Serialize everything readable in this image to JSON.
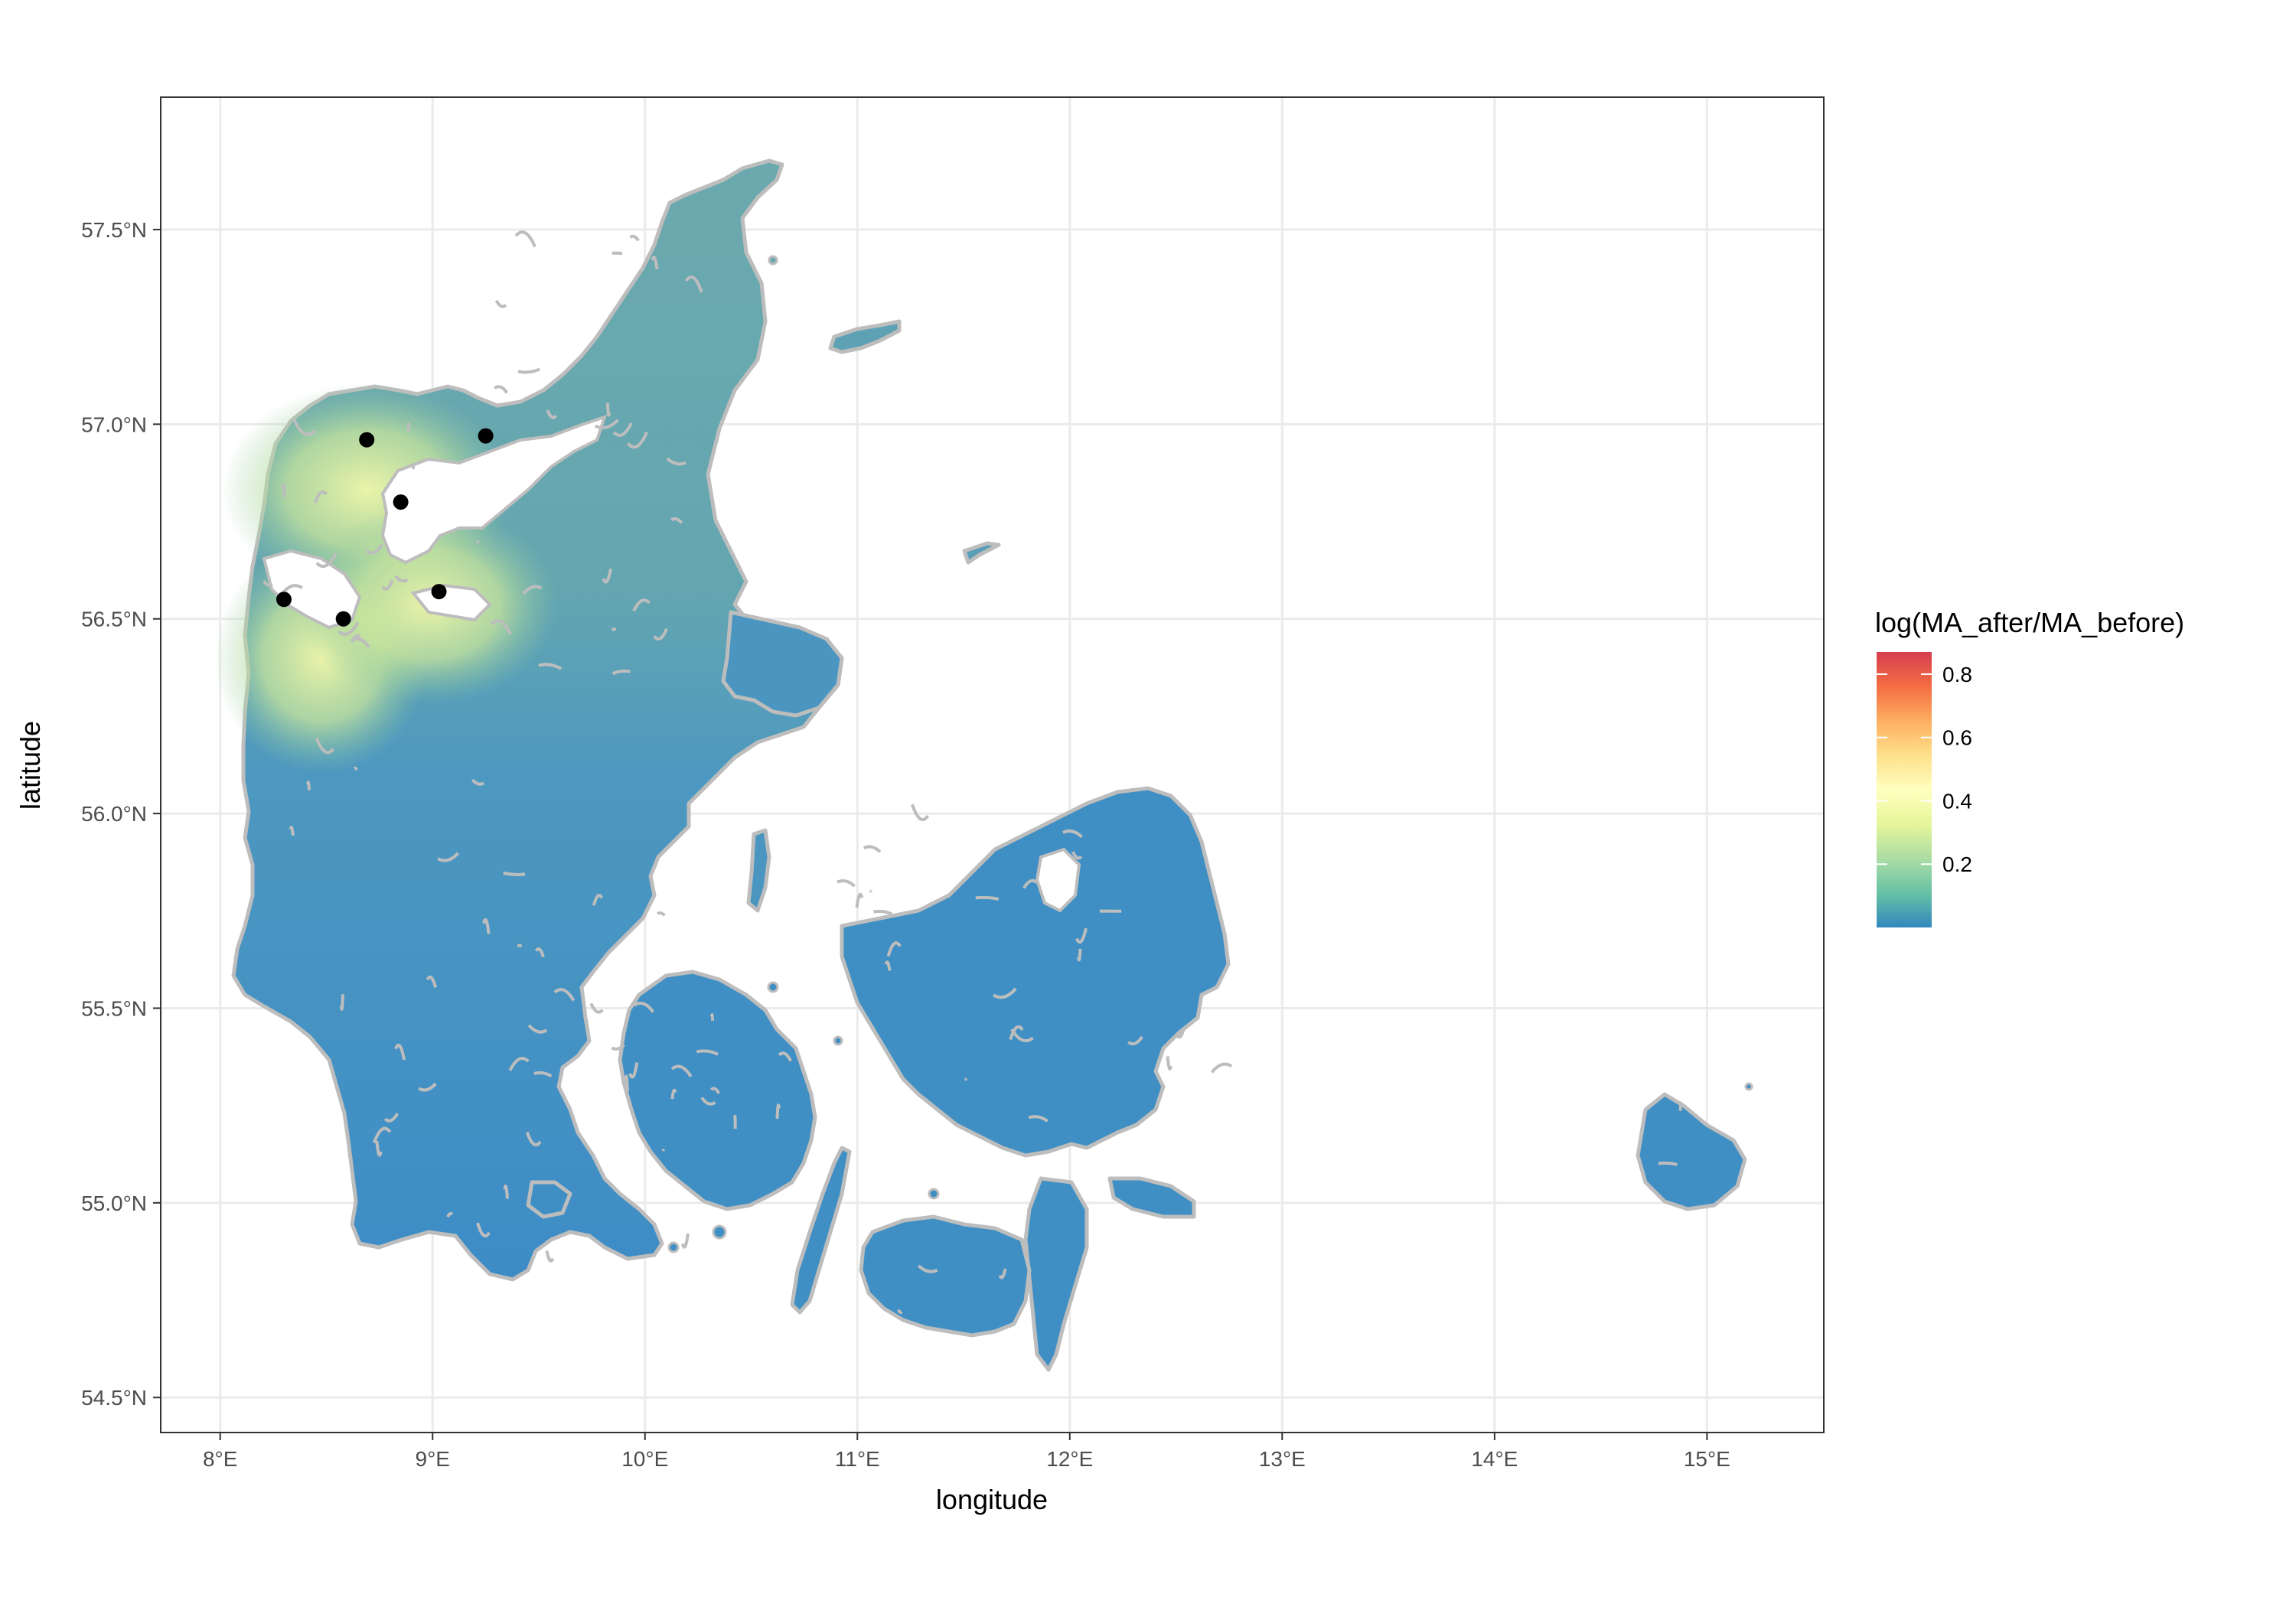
{
  "chart_data": {
    "type": "choropleth-map",
    "xlabel": "longitude",
    "ylabel": "latitude",
    "x_ticks": [
      "8°E",
      "9°E",
      "10°E",
      "11°E",
      "12°E",
      "13°E",
      "14°E",
      "15°E"
    ],
    "x_tick_values": [
      8,
      9,
      10,
      11,
      12,
      13,
      14,
      15
    ],
    "y_ticks": [
      "54.5°N",
      "55.0°N",
      "55.5°N",
      "56.0°N",
      "56.5°N",
      "57.0°N",
      "57.5°N"
    ],
    "y_tick_values": [
      54.5,
      55.0,
      55.5,
      56.0,
      56.5,
      57.0,
      57.5
    ],
    "xlim": [
      7.72,
      15.55
    ],
    "ylim": [
      54.41,
      57.84
    ],
    "grid": true,
    "legend": {
      "title": "log(MA_after/MA_before)",
      "position": "right",
      "range": [
        0.0,
        0.87
      ],
      "ticks": [
        "0.2",
        "0.4",
        "0.6",
        "0.8"
      ],
      "tick_values": [
        0.2,
        0.4,
        0.6,
        0.8
      ],
      "colors": [
        "#3288bd",
        "#66c2a5",
        "#abdda4",
        "#e6f598",
        "#ffffbf",
        "#fee08b",
        "#fdae61",
        "#f46d43",
        "#d53e4f"
      ]
    },
    "points": [
      {
        "lon": 8.69,
        "lat": 56.96
      },
      {
        "lon": 9.25,
        "lat": 56.97
      },
      {
        "lon": 8.85,
        "lat": 56.8
      },
      {
        "lon": 9.03,
        "lat": 56.57
      },
      {
        "lon": 8.3,
        "lat": 56.55
      },
      {
        "lon": 8.58,
        "lat": 56.5
      }
    ],
    "point_color": "#000000",
    "border_color": "#bdbdbd"
  }
}
